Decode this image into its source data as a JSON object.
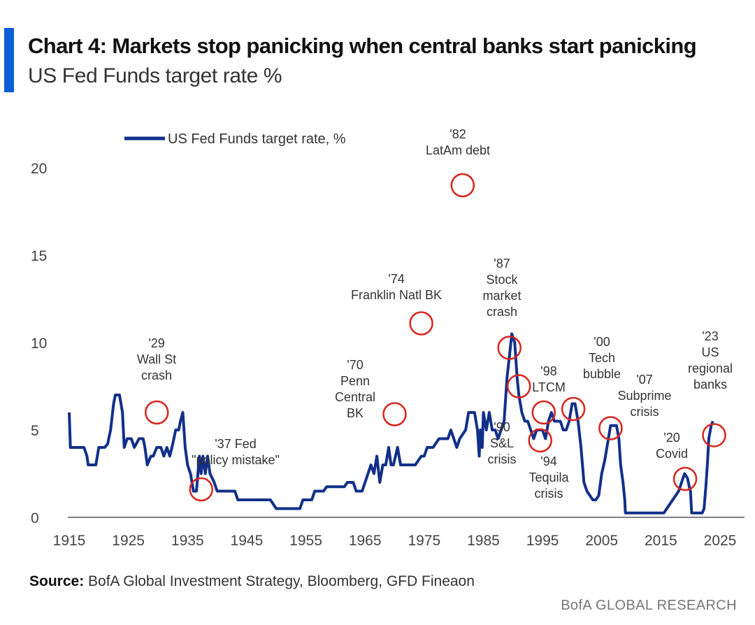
{
  "header": {
    "title": "Chart 4: Markets stop panicking when central banks start panicking",
    "subtitle": "US Fed Funds target rate %",
    "accent_color": "#0b5fd6"
  },
  "footer": {
    "source_label": "Source:",
    "source_text": "BofA Global Investment Strategy, Bloomberg, GFD Fineaon",
    "credit": "BofA GLOBAL RESEARCH"
  },
  "chart_data": {
    "type": "line",
    "title": "Chart 4: Markets stop panicking when central banks start panicking",
    "subtitle": "US Fed Funds target rate %",
    "xlabel": "",
    "ylabel": "",
    "xlim": [
      1915,
      2028
    ],
    "ylim": [
      0,
      21
    ],
    "x_ticks": [
      1915,
      1925,
      1935,
      1945,
      1955,
      1965,
      1975,
      1985,
      1995,
      2005,
      2015,
      2025
    ],
    "y_ticks": [
      0,
      5,
      10,
      15,
      20
    ],
    "grid": false,
    "legend_position": "top-left",
    "line_color": "#12308a",
    "highlight_color": "#d7261e",
    "series": [
      {
        "name": "US Fed Funds target rate, %",
        "points": [
          [
            1915.0,
            6.0
          ],
          [
            1915.2,
            4.0
          ],
          [
            1916.5,
            4.0
          ],
          [
            1917.5,
            4.0
          ],
          [
            1918.0,
            3.5
          ],
          [
            1918.2,
            3.0
          ],
          [
            1919.5,
            3.0
          ],
          [
            1920.0,
            4.0
          ],
          [
            1921.0,
            4.0
          ],
          [
            1921.5,
            4.2
          ],
          [
            1922.0,
            5.0
          ],
          [
            1922.5,
            6.5
          ],
          [
            1922.8,
            7.0
          ],
          [
            1923.5,
            7.0
          ],
          [
            1924.0,
            6.0
          ],
          [
            1924.3,
            4.0
          ],
          [
            1924.8,
            4.5
          ],
          [
            1925.5,
            4.5
          ],
          [
            1926.0,
            4.0
          ],
          [
            1926.8,
            4.5
          ],
          [
            1927.5,
            4.5
          ],
          [
            1927.8,
            4.0
          ],
          [
            1928.2,
            3.0
          ],
          [
            1928.8,
            3.5
          ],
          [
            1929.2,
            3.5
          ],
          [
            1929.8,
            4.0
          ],
          [
            1930.5,
            4.0
          ],
          [
            1931.0,
            3.5
          ],
          [
            1931.5,
            4.0
          ],
          [
            1932.0,
            3.5
          ],
          [
            1932.5,
            4.2
          ],
          [
            1933.0,
            5.0
          ],
          [
            1933.5,
            5.0
          ],
          [
            1933.8,
            5.5
          ],
          [
            1934.2,
            6.0
          ],
          [
            1934.6,
            4.0
          ],
          [
            1935.0,
            3.0
          ],
          [
            1935.5,
            2.5
          ],
          [
            1936.0,
            1.5
          ],
          [
            1936.5,
            1.5
          ],
          [
            1937.0,
            3.5
          ],
          [
            1937.3,
            2.5
          ],
          [
            1937.6,
            3.5
          ],
          [
            1938.0,
            2.5
          ],
          [
            1938.4,
            3.5
          ],
          [
            1938.8,
            2.5
          ],
          [
            1939.5,
            2.0
          ],
          [
            1940.0,
            1.5
          ],
          [
            1942.0,
            1.5
          ],
          [
            1943.0,
            1.5
          ],
          [
            1943.5,
            1.0
          ],
          [
            1949.0,
            1.0
          ],
          [
            1950.0,
            0.5
          ],
          [
            1954.0,
            0.5
          ],
          [
            1954.5,
            1.0
          ],
          [
            1956.0,
            1.0
          ],
          [
            1956.5,
            1.5
          ],
          [
            1958.0,
            1.5
          ],
          [
            1958.5,
            1.75
          ],
          [
            1960.0,
            1.75
          ],
          [
            1961.5,
            1.75
          ],
          [
            1962.0,
            2.0
          ],
          [
            1963.0,
            2.0
          ],
          [
            1963.5,
            1.5
          ],
          [
            1964.5,
            1.5
          ],
          [
            1965.0,
            2.0
          ],
          [
            1965.5,
            2.5
          ],
          [
            1966.0,
            3.0
          ],
          [
            1966.5,
            2.5
          ],
          [
            1967.0,
            3.5
          ],
          [
            1967.5,
            2.0
          ],
          [
            1968.0,
            3.0
          ],
          [
            1968.5,
            3.0
          ],
          [
            1969.0,
            4.0
          ],
          [
            1969.4,
            3.0
          ],
          [
            1969.8,
            3.0
          ],
          [
            1970.5,
            4.0
          ],
          [
            1971.0,
            3.0
          ],
          [
            1973.0,
            3.0
          ],
          [
            1973.5,
            3.0
          ],
          [
            1974.5,
            3.5
          ],
          [
            1975.0,
            3.5
          ],
          [
            1975.5,
            4.0
          ],
          [
            1976.5,
            4.0
          ],
          [
            1977.5,
            4.5
          ],
          [
            1978.0,
            4.5
          ],
          [
            1978.5,
            4.5
          ],
          [
            1979.0,
            4.5
          ],
          [
            1979.5,
            5.0
          ],
          [
            1980.0,
            4.5
          ],
          [
            1980.5,
            4.0
          ],
          [
            1981.0,
            4.5
          ],
          [
            1982.0,
            5.0
          ],
          [
            1982.5,
            6.0
          ],
          [
            1983.0,
            6.0
          ],
          [
            1983.5,
            6.0
          ],
          [
            1984.0,
            5.0
          ],
          [
            1984.3,
            3.5
          ],
          [
            1984.5,
            5.0
          ],
          [
            1984.8,
            4.0
          ],
          [
            1985.0,
            6.0
          ],
          [
            1985.5,
            5.0
          ],
          [
            1986.0,
            6.0
          ],
          [
            1986.5,
            5.0
          ],
          [
            1987.0,
            5.0
          ],
          [
            1987.5,
            4.5
          ],
          [
            1988.0,
            5.0
          ],
          [
            1988.5,
            5.5
          ],
          [
            1989.0,
            8.0
          ],
          [
            1989.5,
            9.5
          ],
          [
            1989.8,
            10.5
          ],
          [
            1990.3,
            10.0
          ],
          [
            1990.7,
            8.0
          ],
          [
            1991.0,
            7.0
          ],
          [
            1991.5,
            6.0
          ],
          [
            1992.0,
            5.5
          ],
          [
            1992.5,
            5.5
          ],
          [
            1993.0,
            5.0
          ],
          [
            1993.5,
            4.5
          ],
          [
            1994.0,
            5.0
          ],
          [
            1994.5,
            5.0
          ],
          [
            1995.0,
            5.0
          ],
          [
            1995.5,
            4.5
          ],
          [
            1996.0,
            5.5
          ],
          [
            1996.5,
            6.0
          ],
          [
            1997.0,
            5.5
          ],
          [
            1998.0,
            5.5
          ],
          [
            1998.5,
            5.0
          ],
          [
            1999.0,
            5.0
          ],
          [
            1999.5,
            5.5
          ],
          [
            2000.0,
            6.5
          ],
          [
            2000.5,
            6.5
          ],
          [
            2001.0,
            5.5
          ],
          [
            2001.5,
            4.0
          ],
          [
            2002.0,
            2.0
          ],
          [
            2002.5,
            1.5
          ],
          [
            2003.0,
            1.25
          ],
          [
            2003.5,
            1.0
          ],
          [
            2004.0,
            1.0
          ],
          [
            2004.5,
            1.25
          ],
          [
            2005.0,
            2.5
          ],
          [
            2005.5,
            3.25
          ],
          [
            2006.0,
            4.25
          ],
          [
            2006.5,
            5.25
          ],
          [
            2007.0,
            5.25
          ],
          [
            2007.5,
            5.25
          ],
          [
            2007.9,
            4.5
          ],
          [
            2008.2,
            3.0
          ],
          [
            2008.6,
            2.0
          ],
          [
            2008.9,
            1.0
          ],
          [
            2009.0,
            0.25
          ],
          [
            2015.5,
            0.25
          ],
          [
            2016.0,
            0.5
          ],
          [
            2017.0,
            1.0
          ],
          [
            2017.5,
            1.25
          ],
          [
            2018.0,
            1.5
          ],
          [
            2018.5,
            2.0
          ],
          [
            2019.0,
            2.5
          ],
          [
            2019.5,
            2.25
          ],
          [
            2019.8,
            1.75
          ],
          [
            2020.0,
            1.5
          ],
          [
            2020.2,
            0.25
          ],
          [
            2022.0,
            0.25
          ],
          [
            2022.3,
            0.5
          ],
          [
            2022.6,
            1.75
          ],
          [
            2022.9,
            3.25
          ],
          [
            2023.1,
            4.5
          ],
          [
            2023.5,
            5.25
          ],
          [
            2023.8,
            5.5
          ]
        ]
      }
    ],
    "annotations": [
      {
        "label": [
          "'29",
          "Wall St",
          "crash"
        ],
        "x": 1929.8,
        "y": 6.0
      },
      {
        "label": [
          "'37 Fed",
          "\"policy mistake\""
        ],
        "x": 1937.3,
        "y": 1.6
      },
      {
        "label": [
          "'70",
          "Penn",
          "Central",
          "BK"
        ],
        "x": 1970.0,
        "y": 5.9
      },
      {
        "label": [
          "'74",
          "Franklin Natl BK"
        ],
        "x": 1974.5,
        "y": 11.1
      },
      {
        "label": [
          "'82",
          "LatAm debt"
        ],
        "x": 1981.5,
        "y": 19.0
      },
      {
        "label": [
          "'87",
          "Stock",
          "market",
          "crash"
        ],
        "x": 1989.4,
        "y": 9.7
      },
      {
        "label": [
          "'90",
          "S&L",
          "crisis"
        ],
        "x": 1991.0,
        "y": 7.5
      },
      {
        "label": [
          "'94",
          "Tequila",
          "crisis"
        ],
        "x": 1994.6,
        "y": 4.4
      },
      {
        "label": [
          "'98",
          "LTCM"
        ],
        "x": 1995.2,
        "y": 6.0
      },
      {
        "label": [
          "'00",
          "Tech",
          "bubble"
        ],
        "x": 2000.2,
        "y": 6.2
      },
      {
        "label": [
          "'07",
          "Subprime",
          "crisis"
        ],
        "x": 2006.5,
        "y": 5.1
      },
      {
        "label": [
          "'20",
          "Covid"
        ],
        "x": 2019.1,
        "y": 2.2
      },
      {
        "label": [
          "'23",
          "US",
          "regional",
          "banks"
        ],
        "x": 2024.0,
        "y": 4.7
      }
    ]
  }
}
